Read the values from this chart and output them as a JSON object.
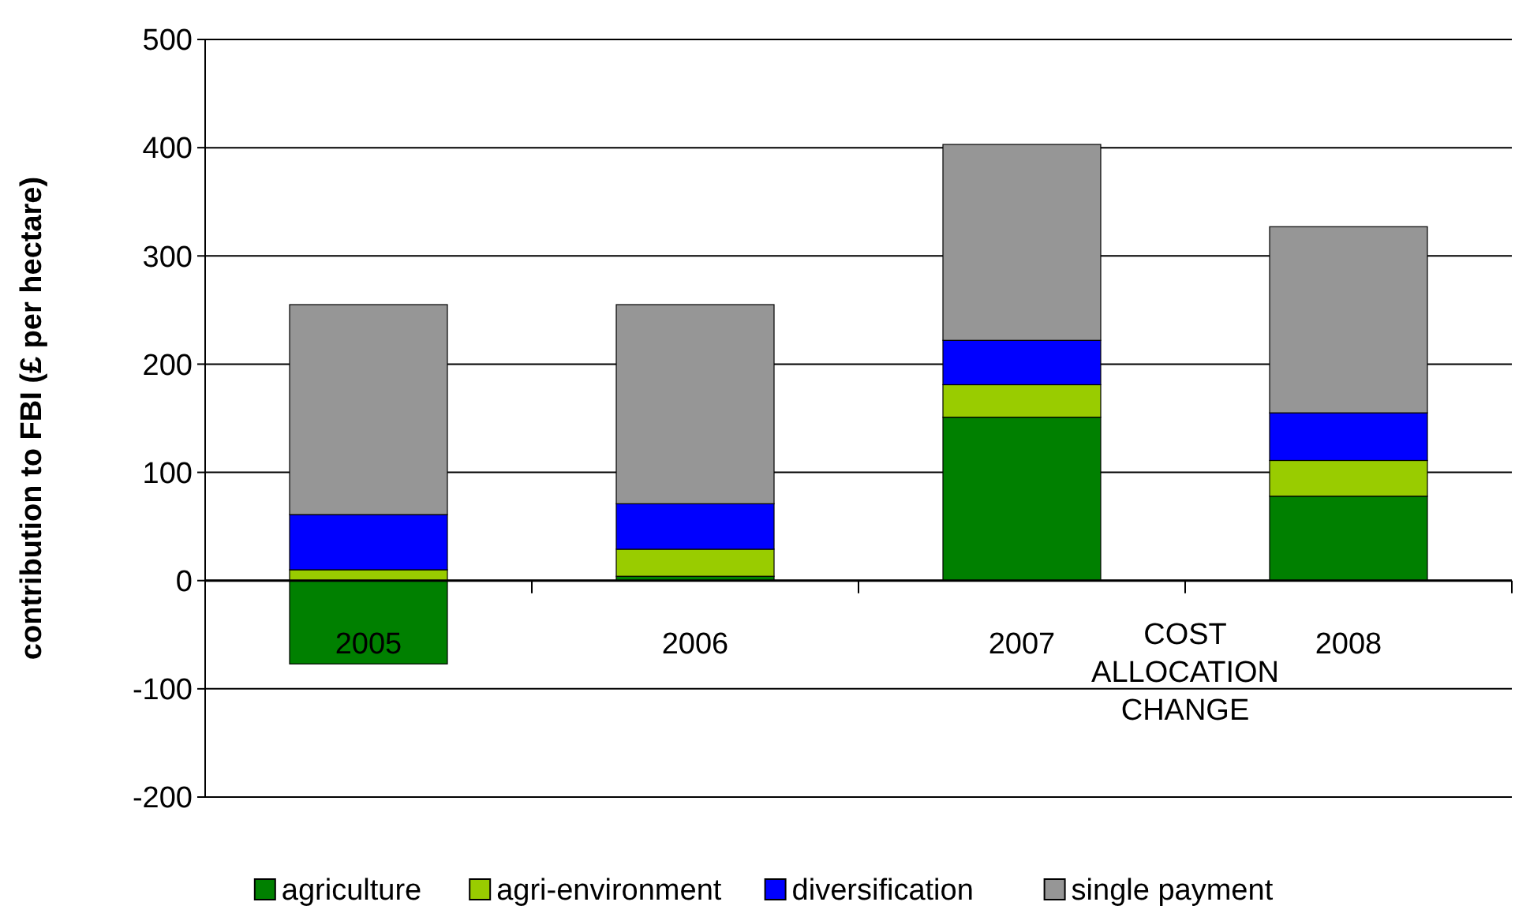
{
  "chart_data": {
    "type": "bar",
    "stacked": true,
    "ylabel": "contribution to FBI (£ per hectare)",
    "categories": [
      "2005",
      "2006",
      "2007",
      "2008"
    ],
    "series": [
      {
        "name": "agriculture",
        "color": "#008000",
        "values": [
          -77,
          4,
          151,
          78
        ]
      },
      {
        "name": "agri-environment",
        "color": "#99cc00",
        "values": [
          10,
          25,
          30,
          33
        ]
      },
      {
        "name": "diversification",
        "color": "#0000ff",
        "values": [
          51,
          42,
          41,
          44
        ]
      },
      {
        "name": "single payment",
        "color": "#969696",
        "values": [
          194,
          184,
          181,
          172
        ]
      }
    ],
    "ylim": [
      -200,
      500
    ],
    "yticks": [
      -200,
      -100,
      0,
      100,
      200,
      300,
      400,
      500
    ],
    "grid": "y",
    "legend": "bottom",
    "annotations": [
      "COST ALLOCATION CHANGE"
    ]
  }
}
